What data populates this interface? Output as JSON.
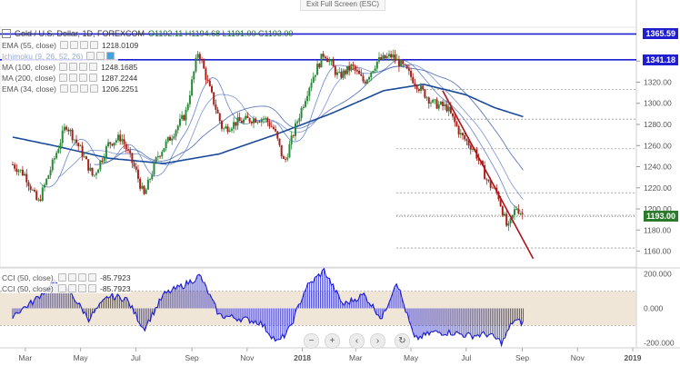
{
  "header": {
    "fullscreen_label": "Exit Full Screen (ESC)",
    "title": "Gold / U.S. Dollar, 1D, FOREXCOM",
    "ohlc": "O1192.11  H1194.68  L1191.00  C1193.00"
  },
  "indicators": [
    {
      "label": "EMA (55, close)",
      "value": "1218.0109"
    },
    {
      "label": "Ichimoku (9, 26, 52, 26)",
      "value": ""
    },
    {
      "label": "MA (100, close)",
      "value": "1248.1685"
    },
    {
      "label": "MA (200, close)",
      "value": "1287.2244"
    },
    {
      "label": "EMA (34, close)",
      "value": "1206.2251"
    }
  ],
  "cci_legend": [
    {
      "label": "CCI (50, close)",
      "value": "-85.7923"
    },
    {
      "label": "CCI (50, close)",
      "value": "-85.7923"
    }
  ],
  "nav_icons": [
    "minus-icon",
    "plus-icon",
    "left-arrow-icon",
    "right-arrow-icon",
    "reset-icon"
  ],
  "nav_glyphs": [
    "−",
    "+",
    "‹",
    "›",
    "↻"
  ],
  "colors": {
    "up": "#2a8a3a",
    "down": "#a8201a",
    "ma": "#1a4a9a",
    "level": "#1f1fd0",
    "trend": "#b0121b",
    "current": "#2a7a2a",
    "cci": "#1c1cd0",
    "band": "#e8dcc6"
  },
  "chart_data": {
    "type": "line",
    "title": "Gold / U.S. Dollar, 1D, FOREXCOM",
    "xlabel": "",
    "ylabel": "",
    "x_ticks": [
      "Mar",
      "May",
      "Jul",
      "Sep",
      "Nov",
      "2018",
      "Mar",
      "May",
      "Jul",
      "Sep",
      "Nov",
      "2019"
    ],
    "y_ticks": [
      1160,
      1180,
      1200,
      1220,
      1240,
      1260,
      1280,
      1300,
      1320,
      1340
    ],
    "ylim": [
      1145,
      1372
    ],
    "levels": [
      {
        "label": "1365.59",
        "value": 1365.59
      },
      {
        "label": "1341.18",
        "value": 1341.18
      }
    ],
    "current_price": {
      "label": "1193.00",
      "value": 1193.0
    },
    "dashed_levels": [
      1313,
      1285,
      1257,
      1215,
      1194,
      1163
    ],
    "price_series": {
      "name": "Gold / U.S. Dollar",
      "x": [
        "2017-02-15",
        "2017-03-01",
        "2017-03-15",
        "2017-04-01",
        "2017-04-15",
        "2017-05-01",
        "2017-05-15",
        "2017-06-01",
        "2017-06-15",
        "2017-07-01",
        "2017-07-10",
        "2017-07-25",
        "2017-08-10",
        "2017-08-25",
        "2017-09-08",
        "2017-09-20",
        "2017-10-05",
        "2017-10-20",
        "2017-11-05",
        "2017-11-20",
        "2017-12-01",
        "2017-12-12",
        "2017-12-26",
        "2018-01-10",
        "2018-01-25",
        "2018-02-10",
        "2018-02-25",
        "2018-03-10",
        "2018-03-25",
        "2018-04-10",
        "2018-04-25",
        "2018-05-10",
        "2018-05-25",
        "2018-06-10",
        "2018-06-25",
        "2018-07-10",
        "2018-07-25",
        "2018-08-05",
        "2018-08-16",
        "2018-08-25",
        "2018-09-03"
      ],
      "values": [
        1242,
        1232,
        1205,
        1245,
        1280,
        1256,
        1230,
        1262,
        1268,
        1236,
        1212,
        1250,
        1270,
        1290,
        1350,
        1315,
        1275,
        1282,
        1285,
        1286,
        1275,
        1243,
        1282,
        1320,
        1348,
        1325,
        1335,
        1320,
        1340,
        1345,
        1332,
        1315,
        1300,
        1296,
        1270,
        1256,
        1225,
        1214,
        1180,
        1202,
        1193
      ]
    },
    "ma_series": {
      "name": "MA (200, close)",
      "x": [
        "2017-02-15",
        "2017-04-01",
        "2017-06-01",
        "2017-08-01",
        "2017-10-01",
        "2017-12-01",
        "2018-02-01",
        "2018-04-01",
        "2018-05-15",
        "2018-07-01",
        "2018-08-01",
        "2018-09-03"
      ],
      "values": [
        1268,
        1260,
        1248,
        1243,
        1252,
        1270,
        1290,
        1312,
        1318,
        1308,
        1296,
        1287
      ]
    },
    "cci": {
      "name": "CCI (50, close)",
      "ylim": [
        -230,
        230
      ],
      "y_ticks": [
        200,
        0,
        -200
      ],
      "band": [
        100,
        -100
      ],
      "x": [
        "2017-02-15",
        "2017-03-10",
        "2017-04-01",
        "2017-04-20",
        "2017-05-10",
        "2017-06-01",
        "2017-06-20",
        "2017-07-10",
        "2017-08-01",
        "2017-08-25",
        "2017-09-10",
        "2017-10-01",
        "2017-10-25",
        "2017-11-15",
        "2017-12-05",
        "2017-12-18",
        "2018-01-05",
        "2018-01-25",
        "2018-02-15",
        "2018-03-10",
        "2018-03-30",
        "2018-04-15",
        "2018-05-05",
        "2018-05-25",
        "2018-06-15",
        "2018-07-05",
        "2018-07-25",
        "2018-08-10",
        "2018-08-22",
        "2018-09-03"
      ],
      "values": [
        -40,
        40,
        150,
        90,
        -60,
        70,
        60,
        -120,
        80,
        140,
        190,
        -40,
        -60,
        -80,
        -200,
        -120,
        120,
        220,
        20,
        80,
        -60,
        160,
        -180,
        -140,
        -140,
        -160,
        -150,
        -200,
        -70,
        -86
      ]
    }
  }
}
